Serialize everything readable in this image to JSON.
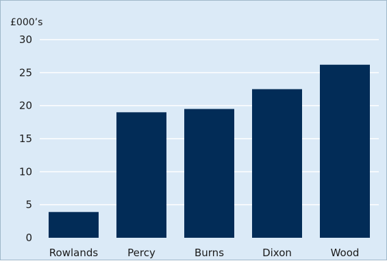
{
  "chart_data": {
    "type": "bar",
    "title": "",
    "xlabel": "",
    "ylabel": "£000’s",
    "categories": [
      "Rowlands",
      "Percy",
      "Burns",
      "Dixon",
      "Wood"
    ],
    "values": [
      3.9,
      19.0,
      19.5,
      22.5,
      26.2
    ],
    "ylim": [
      0,
      30
    ],
    "yticks": [
      0,
      5,
      10,
      15,
      20,
      25,
      30
    ],
    "grid": true,
    "colors": {
      "bar": "#022c57",
      "background": "#dbeaf7",
      "gridline": "#ffffff"
    }
  }
}
